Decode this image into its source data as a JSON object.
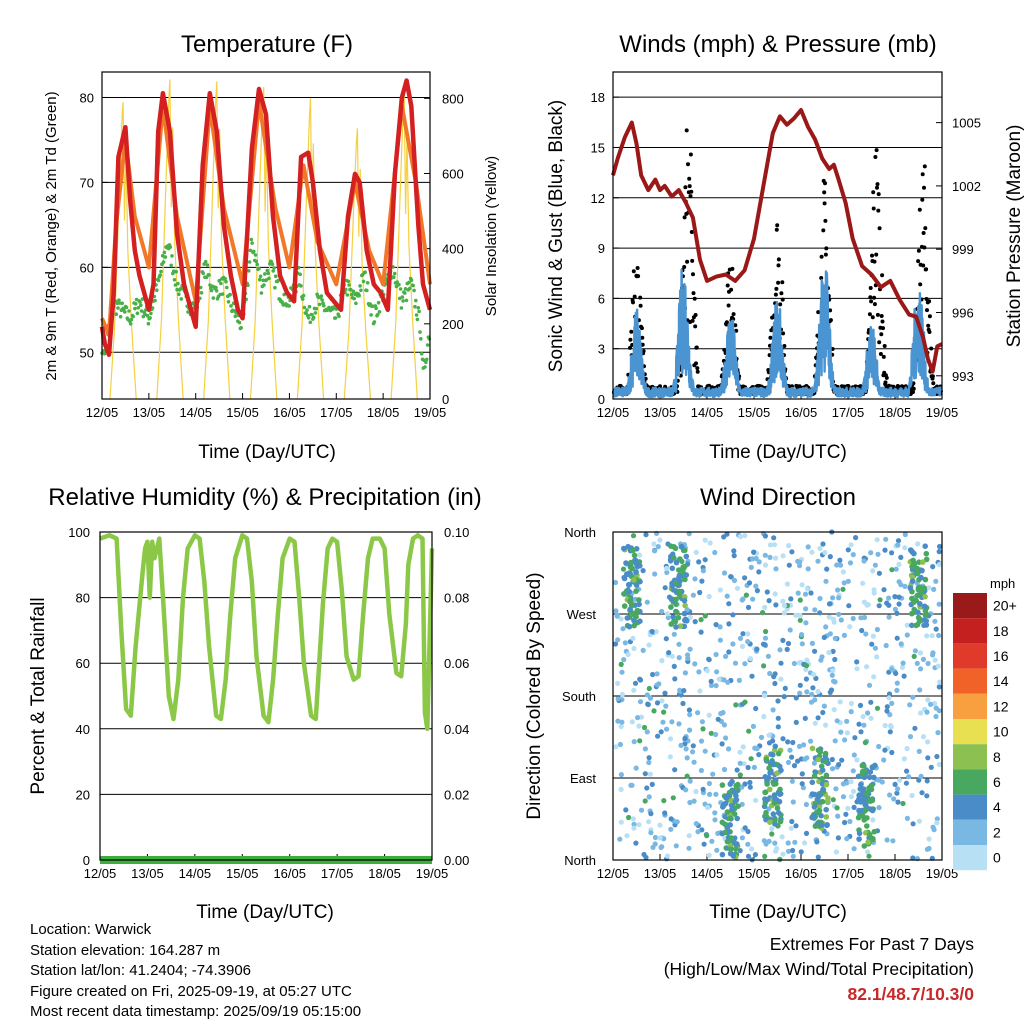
{
  "x_ticks": [
    "12/05",
    "13/05",
    "14/05",
    "15/05",
    "16/05",
    "17/05",
    "18/05",
    "19/05"
  ],
  "info": {
    "location": "Location: Warwick",
    "elevation": "Station elevation: 164.287 m",
    "latlon": "Station lat/lon: 41.2404; -74.3906",
    "created": "Figure created on Fri, 2025-09-19, at 05:27 UTC",
    "recent": "Most recent data timestamp: 2025/09/19 05:15:00"
  },
  "extremes": {
    "line1": "Extremes For Past 7 Days",
    "line2": "(High/Low/Max Wind/Total Precipitation)",
    "value": "82.1/48.7/10.3/0"
  },
  "chart_data": [
    {
      "type": "line",
      "title": "Temperature (F)",
      "xlabel": "Time (Day/UTC)",
      "ylabel": "2m & 9m T (Red, Orange) & 2m Td (Green)",
      "y2label": "Solar Insolation (Yellow)",
      "ylim": [
        44.5,
        83
      ],
      "y2lim": [
        0,
        870
      ],
      "y_ticks": [
        50,
        60,
        70,
        80
      ],
      "y2_ticks": [
        0,
        200,
        400,
        600,
        800
      ],
      "colors": {
        "t2m": "#d42020",
        "t9m": "#f07828",
        "td": "#48b048",
        "solar": "#f5d040"
      },
      "series": [
        {
          "name": "2m T",
          "x": [
            0,
            0.06,
            0.15,
            0.25,
            0.35,
            0.5,
            0.6,
            0.7,
            0.8,
            1.0,
            1.1,
            1.2,
            1.3,
            1.45,
            1.6,
            1.75,
            1.9,
            2.0,
            2.15,
            2.3,
            2.45,
            2.6,
            2.75,
            2.9,
            3.0,
            3.2,
            3.35,
            3.5,
            3.65,
            3.8,
            3.95,
            4.1,
            4.25,
            4.4,
            4.5,
            4.65,
            4.8,
            4.95,
            5.1,
            5.25,
            5.4,
            5.5,
            5.65,
            5.8,
            5.95,
            6.1,
            6.25,
            6.4,
            6.5,
            6.6,
            6.75,
            6.85,
            7.0
          ],
          "values": [
            53,
            51,
            49.7,
            57,
            73,
            76.5,
            68,
            62,
            59,
            55,
            58,
            76,
            80.5,
            76,
            64,
            58,
            55,
            53,
            72,
            80.5,
            76,
            65,
            59,
            55,
            54,
            74,
            81,
            78,
            66,
            59,
            57,
            56,
            73,
            73.5,
            70,
            62,
            57,
            56,
            55,
            66,
            71,
            70,
            62,
            58,
            57,
            55,
            71,
            80,
            82,
            79,
            65,
            58,
            55
          ]
        },
        {
          "name": "9m T",
          "x": [
            0,
            0.15,
            0.3,
            0.5,
            0.7,
            0.9,
            1.0,
            1.3,
            1.6,
            2.0,
            2.3,
            2.6,
            3.0,
            3.35,
            3.7,
            4.0,
            4.3,
            4.6,
            5.0,
            5.4,
            5.7,
            6.0,
            6.4,
            6.7,
            7.0
          ],
          "values": [
            54,
            52,
            65,
            75,
            66,
            62,
            60,
            79,
            66,
            56,
            79,
            67,
            58,
            79.5,
            67,
            60,
            72,
            63,
            58,
            70,
            62,
            58,
            79,
            70,
            58
          ]
        },
        {
          "name": "2m Td",
          "x": [
            0,
            0.1,
            0.2,
            0.4,
            0.6,
            0.8,
            1.0,
            1.2,
            1.4,
            1.6,
            1.8,
            2.0,
            2.2,
            2.4,
            2.6,
            2.8,
            3.0,
            3.2,
            3.4,
            3.6,
            3.8,
            4.0,
            4.2,
            4.4,
            4.6,
            4.8,
            5.0,
            5.2,
            5.4,
            5.6,
            5.8,
            6.0,
            6.2,
            6.4,
            6.6,
            6.8,
            6.85,
            7.0
          ],
          "values": [
            51,
            50,
            56,
            55,
            54,
            56,
            54,
            58,
            63,
            58,
            56,
            55,
            60,
            57,
            58,
            55,
            53,
            63,
            58,
            60,
            57,
            56,
            59,
            54,
            56,
            55,
            54,
            58,
            56,
            59,
            54,
            57,
            60,
            56,
            58,
            53,
            47,
            53
          ]
        },
        {
          "name": "Solar",
          "x": [
            0.45,
            1.45,
            2.45,
            3.45,
            4.45,
            5.45,
            6.45
          ],
          "values": [
            790,
            850,
            845,
            830,
            800,
            720,
            820
          ]
        }
      ]
    },
    {
      "type": "scatter",
      "title": "Winds (mph) & Pressure (mb)",
      "xlabel": "Time (Day/UTC)",
      "ylabel": "Sonic Wind & Gust (Blue, Black)",
      "y2label": "Station Pressure (Maroon)",
      "ylim": [
        0,
        19.5
      ],
      "y2lim": [
        991.9,
        1007.4
      ],
      "y_ticks": [
        0,
        3,
        6,
        9,
        12,
        15,
        18
      ],
      "y2_ticks": [
        993,
        996,
        999,
        1002,
        1005
      ],
      "colors": {
        "wind": "#4a94d2",
        "gust": "#000000",
        "pressure": "#9a1818"
      },
      "series": [
        {
          "name": "Pressure",
          "x": [
            0,
            0.1,
            0.25,
            0.4,
            0.5,
            0.6,
            0.75,
            0.9,
            1.0,
            1.1,
            1.25,
            1.4,
            1.55,
            1.7,
            1.85,
            2.0,
            2.2,
            2.4,
            2.6,
            2.8,
            3.0,
            3.2,
            3.4,
            3.55,
            3.7,
            3.85,
            4.0,
            4.15,
            4.3,
            4.45,
            4.6,
            4.7,
            4.8,
            4.95,
            5.1,
            5.3,
            5.5,
            5.7,
            5.9,
            6.1,
            6.3,
            6.45,
            6.6,
            6.7,
            6.8,
            6.9,
            7.0
          ],
          "values": [
            1002.5,
            1003.3,
            1004.3,
            1005,
            1004,
            1002.5,
            1001.8,
            1002.3,
            1001.8,
            1002,
            1001.5,
            1001.8,
            1001.2,
            1000.5,
            998.5,
            997.5,
            997.7,
            997.8,
            997.5,
            998,
            999.5,
            1002,
            1004.5,
            1005.3,
            1004.9,
            1005.2,
            1005.6,
            1004.8,
            1004.2,
            1003.3,
            1002.8,
            1003,
            1002.3,
            1001.2,
            999.5,
            998.2,
            997.8,
            997.2,
            997.5,
            996.6,
            995.9,
            995.8,
            994.8,
            993.8,
            993.2,
            994.4,
            994.5
          ]
        },
        {
          "name": "Sonic Wind (peaks)",
          "x": [
            0.5,
            1.5,
            2.5,
            3.5,
            4.5,
            5.5,
            6.5
          ],
          "values": [
            6.5,
            10,
            6.5,
            7.5,
            10.5,
            5.5,
            9
          ]
        },
        {
          "name": "Gust (peaks)",
          "x": [
            0.5,
            1.6,
            2.5,
            3.5,
            4.5,
            5.6,
            6.6
          ],
          "values": [
            9,
            17.5,
            8.5,
            12,
            13.5,
            16.5,
            15
          ]
        }
      ]
    },
    {
      "type": "line",
      "title": "Relative Humidity (%) & Precipitation (in)",
      "xlabel": "Time (Day/UTC)",
      "ylabel": "Percent & Total Rainfall",
      "ylim": [
        0,
        100
      ],
      "y2lim": [
        0,
        0.1
      ],
      "y_ticks": [
        0,
        20,
        40,
        60,
        80,
        100
      ],
      "y2_ticks": [
        "0.00",
        "0.02",
        "0.04",
        "0.06",
        "0.08",
        "0.10"
      ],
      "colors": {
        "rh": "#8cc848",
        "precip": "#3cae3c"
      },
      "series": [
        {
          "name": "RH",
          "x": [
            0,
            0.2,
            0.35,
            0.45,
            0.55,
            0.65,
            0.75,
            0.9,
            0.95,
            1.0,
            1.05,
            1.1,
            1.15,
            1.25,
            1.35,
            1.45,
            1.55,
            1.65,
            1.75,
            1.85,
            2.0,
            2.1,
            2.2,
            2.3,
            2.45,
            2.55,
            2.65,
            2.75,
            2.85,
            3.0,
            3.1,
            3.2,
            3.3,
            3.45,
            3.55,
            3.65,
            3.75,
            3.85,
            4.0,
            4.1,
            4.2,
            4.3,
            4.45,
            4.55,
            4.6,
            4.7,
            4.8,
            4.9,
            5.0,
            5.1,
            5.2,
            5.35,
            5.45,
            5.55,
            5.65,
            5.75,
            5.9,
            6.0,
            6.1,
            6.25,
            6.35,
            6.45,
            6.5,
            6.6,
            6.7,
            6.8,
            6.85,
            6.9,
            7.0
          ],
          "values": [
            98,
            99,
            98,
            70,
            46,
            44,
            65,
            88,
            95,
            97,
            80,
            97,
            92,
            98,
            75,
            50,
            43,
            55,
            80,
            95,
            99,
            98,
            85,
            65,
            44,
            43,
            55,
            75,
            92,
            99,
            98,
            85,
            62,
            44,
            42,
            55,
            75,
            92,
            98,
            97,
            80,
            60,
            44,
            43,
            55,
            78,
            95,
            98,
            97,
            82,
            62,
            55,
            56,
            75,
            92,
            98,
            98,
            95,
            75,
            57,
            56,
            72,
            90,
            98,
            99,
            98,
            45,
            40,
            95
          ]
        },
        {
          "name": "Precipitation",
          "x": [
            0,
            7
          ],
          "values": [
            0,
            0
          ]
        }
      ]
    },
    {
      "type": "scatter",
      "title": "Wind Direction",
      "xlabel": "Time (Day/UTC)",
      "ylabel": "Direction (Colored By Speed)",
      "y_ticks": [
        "North",
        "East",
        "South",
        "West",
        "North"
      ],
      "legend_title": "mph",
      "legend_labels": [
        "20+",
        "18",
        "16",
        "14",
        "12",
        "10",
        "8",
        "6",
        "4",
        "2",
        "0"
      ],
      "legend_colors": [
        "#9a1a1a",
        "#c52020",
        "#e03a2a",
        "#f06228",
        "#f8a040",
        "#e8e050",
        "#8cc050",
        "#48a860",
        "#4a8cc8",
        "#7ab8e4",
        "#b8e0f4"
      ]
    }
  ]
}
